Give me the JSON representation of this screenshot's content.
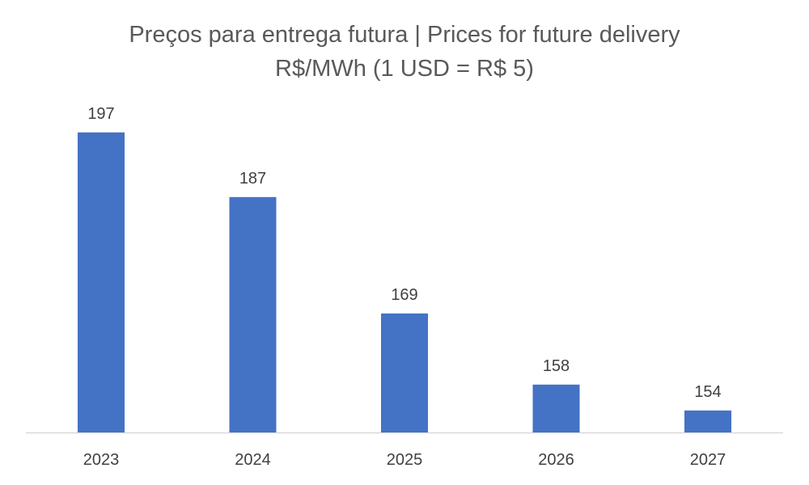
{
  "chart_data": {
    "type": "bar",
    "title": "Preços para entrega futura | Prices for future delivery",
    "subtitle": "R$/MWh (1 USD = R$ 5)",
    "categories": [
      "2023",
      "2024",
      "2025",
      "2026",
      "2027"
    ],
    "values": [
      197,
      187,
      169,
      158,
      154
    ],
    "xlabel": "",
    "ylabel": "",
    "grid": false,
    "legend": "none",
    "colors": {
      "bar": "#4472C4",
      "axis": "#D9D9D9",
      "text": "#404040",
      "title": "#595959"
    }
  }
}
